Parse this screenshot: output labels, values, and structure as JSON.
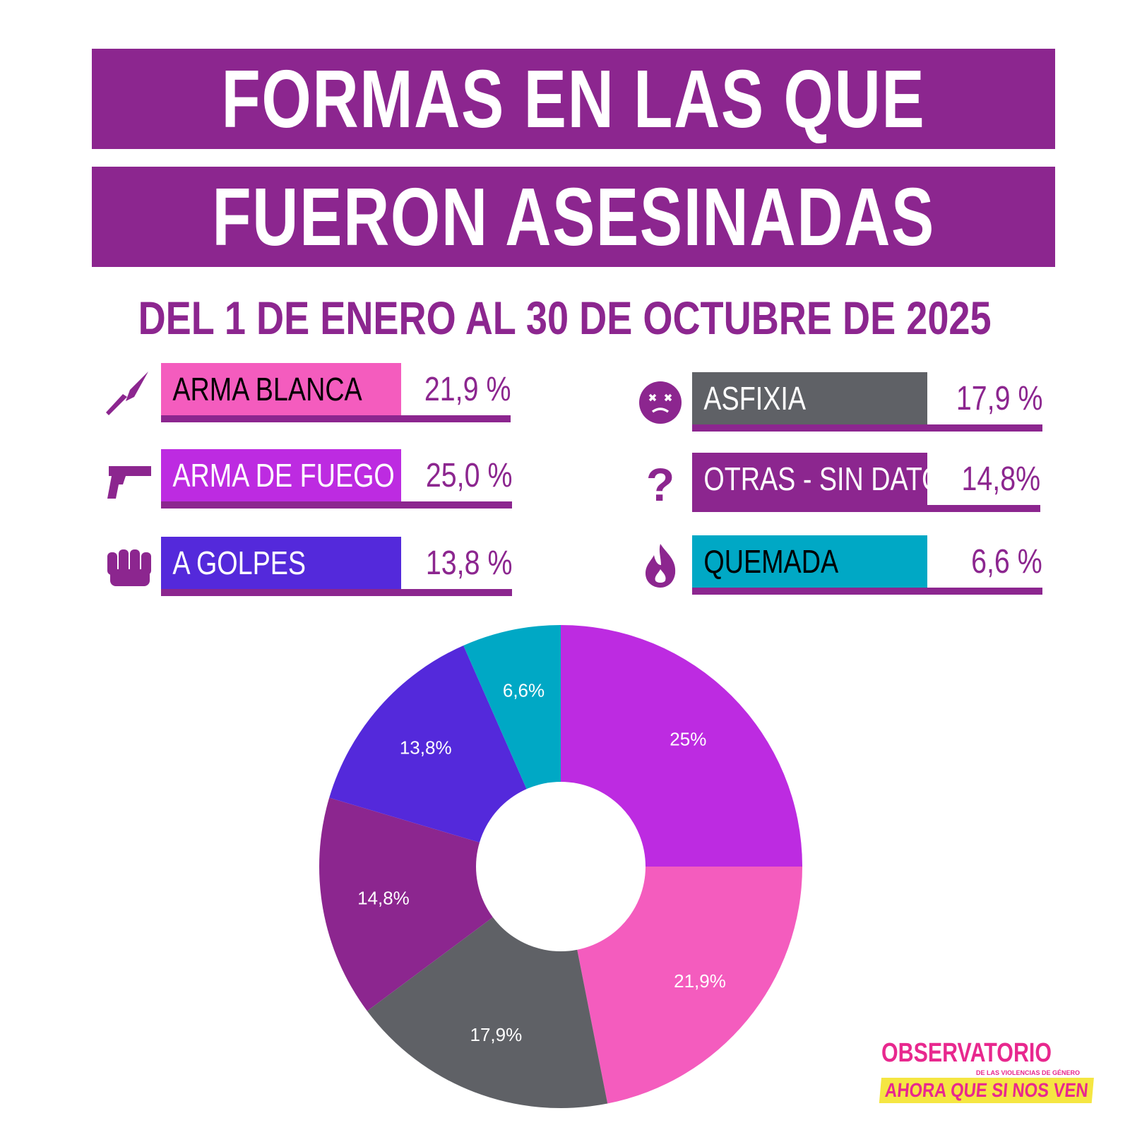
{
  "title": [
    "FORMAS EN LAS QUE",
    "FUERON ASESINADAS"
  ],
  "subtitle": "DEL 1 DE ENERO AL 30 DE OCTUBRE DE 2025",
  "legend": [
    {
      "label": "ARMA BLANCA",
      "value": "21,9 %",
      "color": "#f45cbe",
      "text_color": "#000000",
      "icon": "knife-icon"
    },
    {
      "label": "ARMA DE FUEGO",
      "value": "25,0 %",
      "color": "#bd2be1",
      "text_color": "#ffffff",
      "icon": "gun-icon"
    },
    {
      "label": "A GOLPES",
      "value": "13,8 %",
      "color": "#5429db",
      "text_color": "#ffffff",
      "icon": "fist-icon"
    },
    {
      "label": "ASFIXIA",
      "value": "17,9 %",
      "color": "#5f6166",
      "text_color": "#ffffff",
      "icon": "dizzy-face-icon"
    },
    {
      "label": "OTRAS - SIN DATOS",
      "value": "14,8%",
      "color": "#8c268f",
      "text_color": "#ffffff",
      "icon": "question-icon"
    },
    {
      "label": "QUEMADA",
      "value": "6,6 %",
      "color": "#00a8c5",
      "text_color": "#000000",
      "icon": "fire-icon"
    }
  ],
  "chart_data": {
    "type": "pie",
    "donut": true,
    "slices": [
      {
        "value": 25.0,
        "label": "25%",
        "color": "#bd2be1"
      },
      {
        "value": 21.9,
        "label": "21,9%",
        "color": "#f45cbe"
      },
      {
        "value": 17.9,
        "label": "17,9%",
        "color": "#5f6166"
      },
      {
        "value": 14.8,
        "label": "14,8%",
        "color": "#8c268f"
      },
      {
        "value": 13.8,
        "label": "13,8%",
        "color": "#5429db"
      },
      {
        "value": 6.6,
        "label": "6,6%",
        "color": "#00a8c5"
      }
    ]
  },
  "logo": {
    "line1": "OBSERVATORIO",
    "line2": "DE LAS VIOLENCIAS DE GÉNERO",
    "line3": "AHORA QUE SI NOS VEN"
  },
  "colors": {
    "brand": "#8c268f"
  }
}
